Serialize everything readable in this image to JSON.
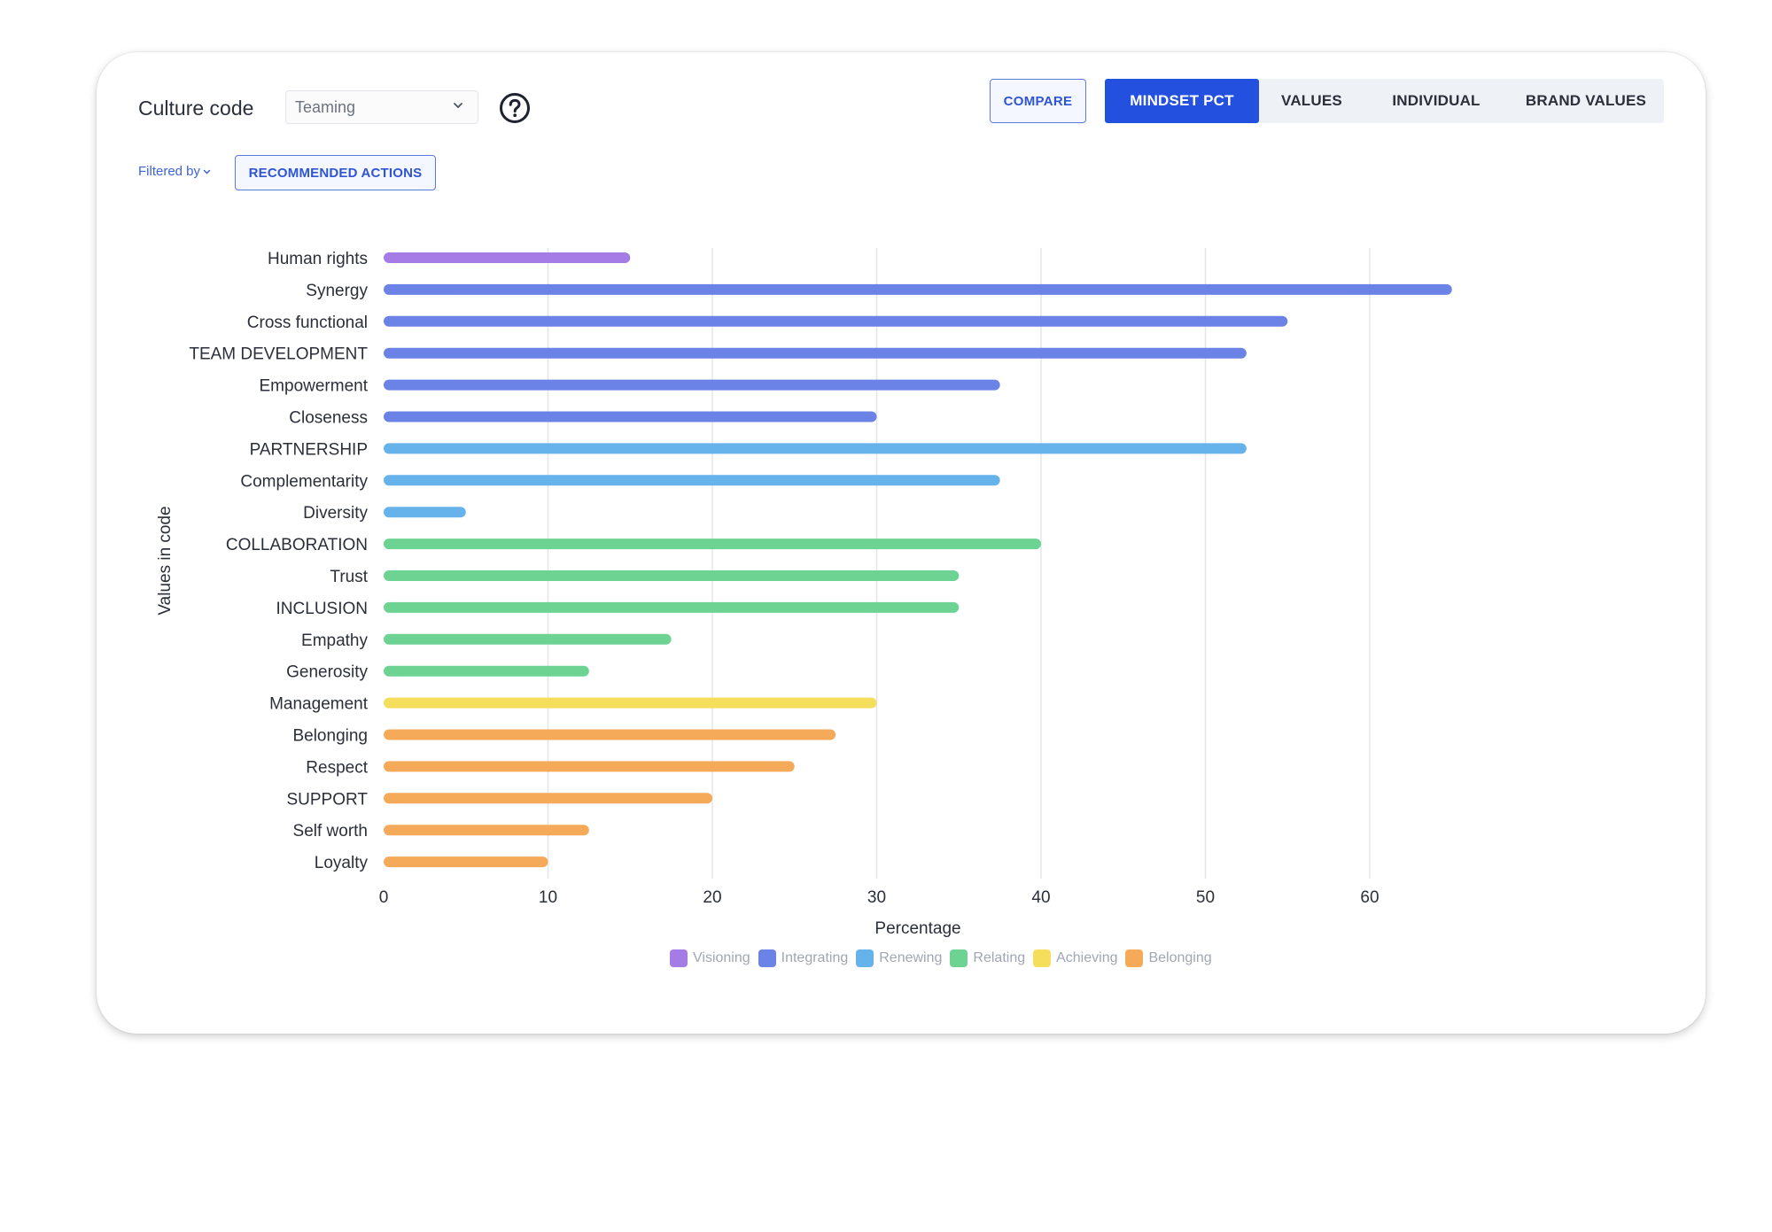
{
  "header": {
    "culture_code_label": "Culture code",
    "culture_code_select": {
      "value": "Teaming"
    },
    "help_icon": "question-circle-icon",
    "compare_label": "COMPARE",
    "tabs": [
      {
        "label": "MINDSET PCT",
        "active": true
      },
      {
        "label": "VALUES",
        "active": false
      },
      {
        "label": "INDIVIDUAL",
        "active": false
      },
      {
        "label": "BRAND VALUES",
        "active": false
      }
    ]
  },
  "filters": {
    "filtered_by_label": "Filtered by",
    "recommended_actions_label": "RECOMMENDED ACTIONS"
  },
  "colors": {
    "Visioning": "#a57be6",
    "Integrating": "#6b82e6",
    "Renewing": "#66b3ec",
    "Relating": "#6cd393",
    "Achieving": "#f5de5c",
    "Belonging": "#f5aa5a"
  },
  "chart_data": {
    "type": "bar",
    "orientation": "horizontal",
    "xlabel": "Percentage",
    "ylabel": "Values in code",
    "xlim": [
      0,
      65
    ],
    "xticks": [
      0,
      10,
      20,
      30,
      40,
      50,
      60
    ],
    "grid": "vertical",
    "legend_position": "bottom",
    "legend": [
      "Visioning",
      "Integrating",
      "Renewing",
      "Relating",
      "Achieving",
      "Belonging"
    ],
    "categories": [
      "Human rights",
      "Synergy",
      "Cross functional",
      "TEAM DEVELOPMENT",
      "Empowerment",
      "Closeness",
      "PARTNERSHIP",
      "Complementarity",
      "Diversity",
      "COLLABORATION",
      "Trust",
      "INCLUSION",
      "Empathy",
      "Generosity",
      "Management",
      "Belonging",
      "Respect",
      "SUPPORT",
      "Self worth",
      "Loyalty"
    ],
    "values": [
      15,
      65,
      55,
      52.5,
      37.5,
      30,
      52.5,
      37.5,
      5,
      40,
      35,
      35,
      17.5,
      12.5,
      30,
      27.5,
      25,
      20,
      12.5,
      10
    ],
    "groups": [
      "Visioning",
      "Integrating",
      "Integrating",
      "Integrating",
      "Integrating",
      "Integrating",
      "Renewing",
      "Renewing",
      "Renewing",
      "Relating",
      "Relating",
      "Relating",
      "Relating",
      "Relating",
      "Achieving",
      "Belonging",
      "Belonging",
      "Belonging",
      "Belonging",
      "Belonging"
    ]
  }
}
